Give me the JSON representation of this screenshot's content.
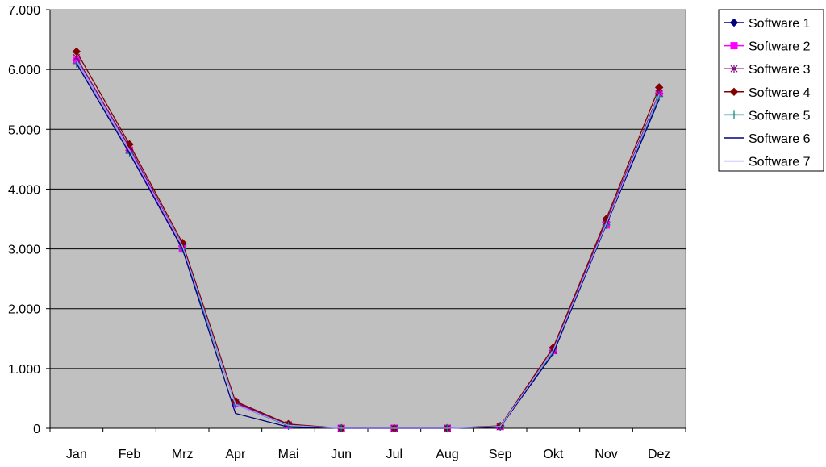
{
  "chart_data": {
    "type": "line",
    "categories": [
      "Jan",
      "Feb",
      "Mrz",
      "Apr",
      "Mai",
      "Jun",
      "Jul",
      "Aug",
      "Sep",
      "Okt",
      "Nov",
      "Dez"
    ],
    "ylim": [
      0,
      7000
    ],
    "y_ticks": [
      0,
      1000,
      2000,
      3000,
      4000,
      5000,
      6000,
      7000
    ],
    "y_tick_labels": [
      "0",
      "1.000",
      "2.000",
      "3.000",
      "4.000",
      "5.000",
      "6.000",
      "7.000"
    ],
    "grid": true,
    "legend_position": "right",
    "plot_background": "#c0c0c0",
    "series": [
      {
        "name": "Software 1",
        "color": "#000080",
        "marker": "diamond",
        "values": [
          6150,
          4650,
          3050,
          420,
          50,
          0,
          0,
          0,
          30,
          1300,
          3450,
          5600
        ]
      },
      {
        "name": "Software 2",
        "color": "#ff00ff",
        "marker": "square",
        "values": [
          6150,
          4650,
          3000,
          420,
          50,
          0,
          0,
          0,
          30,
          1300,
          3400,
          5600
        ]
      },
      {
        "name": "Software 3",
        "color": "#800080",
        "marker": "star",
        "values": [
          6200,
          4700,
          3050,
          430,
          60,
          0,
          0,
          0,
          30,
          1300,
          3450,
          5600
        ]
      },
      {
        "name": "Software 4",
        "color": "#800000",
        "marker": "diamond",
        "values": [
          6300,
          4750,
          3100,
          450,
          70,
          0,
          0,
          0,
          40,
          1350,
          3500,
          5700
        ]
      },
      {
        "name": "Software 5",
        "color": "#008080",
        "marker": "plus",
        "values": [
          6100,
          4600,
          3000,
          400,
          40,
          0,
          0,
          0,
          30,
          1280,
          3400,
          5550
        ]
      },
      {
        "name": "Software 6",
        "color": "#000080",
        "marker": "none",
        "values": [
          6100,
          4600,
          3000,
          250,
          20,
          0,
          0,
          0,
          20,
          1250,
          3400,
          5500
        ]
      },
      {
        "name": "Software 7",
        "color": "#9999ff",
        "marker": "none",
        "values": [
          6150,
          4650,
          3050,
          400,
          50,
          0,
          0,
          0,
          30,
          1300,
          3420,
          5580
        ]
      }
    ]
  }
}
